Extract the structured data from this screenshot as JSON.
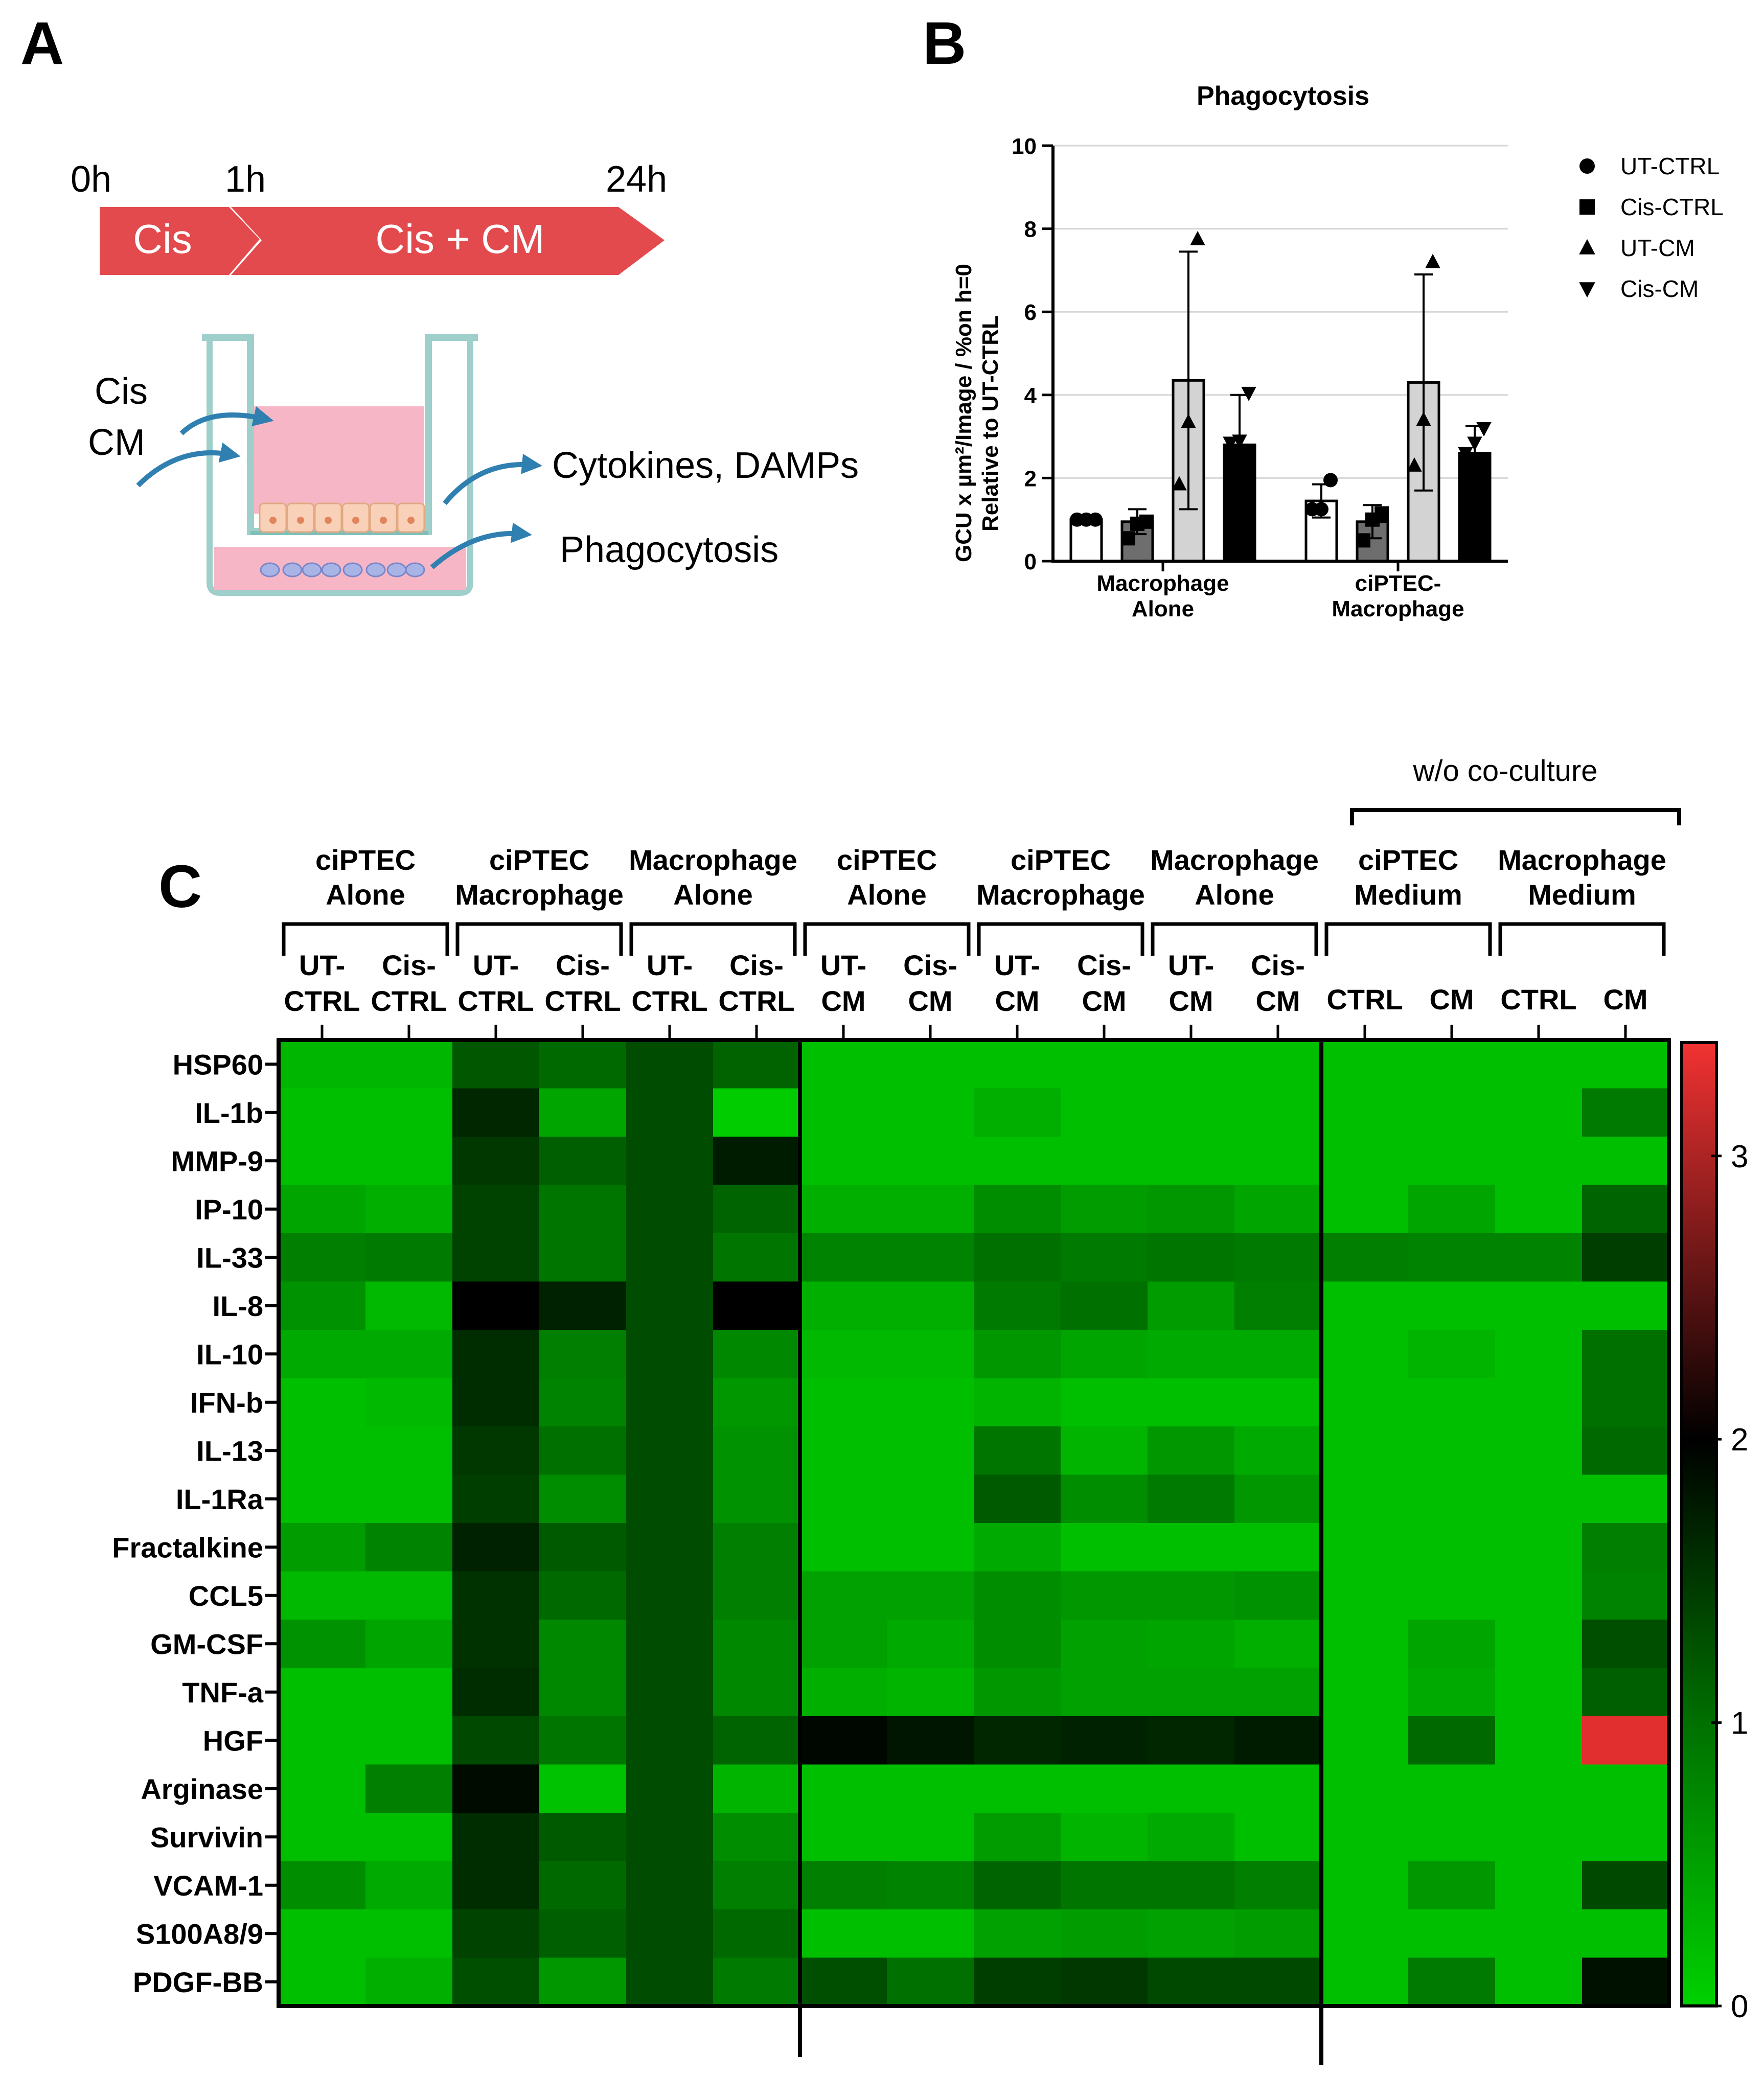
{
  "panels": {
    "a": "A",
    "b": "B",
    "c": "C"
  },
  "schematic": {
    "times": [
      "0h",
      "1h",
      "24h"
    ],
    "step1": "Cis",
    "step2": "Cis + CM",
    "inputs": [
      "Cis",
      "CM"
    ],
    "outputs": [
      "Cytokines, DAMPs",
      "Phagocytosis"
    ],
    "colors": {
      "arrow": "#e34a4d",
      "well_medium": "#f7b6c6",
      "insert": "#bfe0dc",
      "cells_top": "#f8d1b8",
      "cells_bottom": "#a9b4e6",
      "flow_arrow": "#2f7fb0"
    }
  },
  "chart_data": [
    {
      "type": "bar",
      "title": "Phagocytosis",
      "ylabel_line1": "GCU x µm²/Image / %on h=0",
      "ylabel_line2": "Relative to UT-CTRL",
      "categories": [
        [
          "Macrophage",
          "Alone"
        ],
        [
          "ciPTEC-",
          "Macrophage"
        ]
      ],
      "ylim": [
        0,
        10
      ],
      "yticks": [
        0,
        2,
        4,
        6,
        8,
        10
      ],
      "grid": true,
      "legend_position": "right",
      "series": [
        {
          "name": "UT-CTRL",
          "marker": "circle",
          "color": "#ffffff",
          "values": [
            1.0,
            1.45
          ],
          "error": [
            0.0,
            0.4
          ],
          "points": [
            [
              1.0,
              1.0,
              1.0
            ],
            [
              1.25,
              1.25,
              1.95
            ]
          ]
        },
        {
          "name": "Cis-CTRL",
          "marker": "square",
          "color": "#6e6e6e",
          "values": [
            0.95,
            0.95
          ],
          "error": [
            0.3,
            0.4
          ],
          "points": [
            [
              0.55,
              0.9,
              0.95
            ],
            [
              0.5,
              1.0,
              1.15
            ]
          ]
        },
        {
          "name": "UT-CM",
          "marker": "triangle-up",
          "color": "#d3d3d3",
          "values": [
            4.35,
            4.3
          ],
          "error": [
            3.1,
            2.6
          ],
          "points": [
            [
              1.85,
              3.35,
              7.75
            ],
            [
              2.3,
              3.4,
              7.2
            ]
          ]
        },
        {
          "name": "Cis-CM",
          "marker": "triangle-down",
          "color": "#000000",
          "values": [
            2.8,
            2.6
          ],
          "error": [
            1.2,
            0.65
          ],
          "points": [
            [
              2.85,
              2.9,
              4.05
            ],
            [
              2.6,
              2.85,
              3.2
            ]
          ]
        }
      ]
    },
    {
      "type": "heatmap",
      "top_bracket_label": "w/o co-culture",
      "groups": [
        {
          "label": [
            "ciPTEC",
            "Alone"
          ],
          "columns": [
            [
              "UT-",
              "CTRL"
            ],
            [
              "Cis-",
              "CTRL"
            ]
          ]
        },
        {
          "label": [
            "ciPTEC",
            "Macrophage"
          ],
          "columns": [
            [
              "UT-",
              "CTRL"
            ],
            [
              "Cis-",
              "CTRL"
            ]
          ]
        },
        {
          "label": [
            "Macrophage",
            "Alone"
          ],
          "columns": [
            [
              "UT-",
              "CTRL"
            ],
            [
              "Cis-",
              "CTRL"
            ]
          ]
        },
        {
          "label": [
            "ciPTEC",
            "Alone"
          ],
          "columns": [
            [
              "UT-",
              "CM"
            ],
            [
              "Cis-",
              "CM"
            ]
          ]
        },
        {
          "label": [
            "ciPTEC",
            "Macrophage"
          ],
          "columns": [
            [
              "UT-",
              "CM"
            ],
            [
              "Cis-",
              "CM"
            ]
          ]
        },
        {
          "label": [
            "Macrophage",
            "Alone"
          ],
          "columns": [
            [
              "UT-",
              "CM"
            ],
            [
              "Cis-",
              "CM"
            ]
          ]
        },
        {
          "label": [
            "ciPTEC",
            "Medium"
          ],
          "columns": [
            [
              "CTRL"
            ],
            [
              "CM"
            ]
          ]
        },
        {
          "label": [
            "Macrophage",
            "Medium"
          ],
          "columns": [
            [
              "CTRL"
            ],
            [
              "CM"
            ]
          ]
        }
      ],
      "rows": [
        "HSP60",
        "IL-1b",
        "MMP-9",
        "IP-10",
        "IL-33",
        "IL-8",
        "IL-10",
        "IFN-b",
        "IL-13",
        "IL-1Ra",
        "Fractalkine",
        "CCL5",
        "GM-CSF",
        "TNF-a",
        "HGF",
        "Arginase",
        "Survivin",
        "VCAM-1",
        "S100A8/9",
        "PDGF-BB"
      ],
      "values": [
        [
          0.28,
          0.28,
          1.22,
          1.05,
          1.32,
          1.12,
          0.2,
          0.2,
          0.2,
          0.2,
          0.2,
          0.2,
          0.2,
          0.2,
          0.2,
          0.2
        ],
        [
          0.2,
          0.2,
          1.65,
          0.45,
          1.32,
          0.05,
          0.2,
          0.2,
          0.35,
          0.2,
          0.2,
          0.2,
          0.2,
          0.2,
          0.2,
          0.9
        ],
        [
          0.2,
          0.2,
          1.5,
          1.15,
          1.32,
          1.75,
          0.2,
          0.2,
          0.2,
          0.2,
          0.2,
          0.2,
          0.2,
          0.2,
          0.2,
          0.2
        ],
        [
          0.45,
          0.35,
          1.4,
          0.95,
          1.32,
          1.1,
          0.35,
          0.35,
          0.7,
          0.55,
          0.6,
          0.45,
          0.2,
          0.45,
          0.2,
          1.1
        ],
        [
          0.85,
          0.9,
          1.4,
          0.95,
          1.32,
          0.95,
          0.8,
          0.8,
          1.0,
          0.9,
          0.95,
          0.9,
          0.85,
          0.8,
          0.8,
          1.45
        ],
        [
          0.65,
          0.25,
          2.0,
          1.7,
          1.32,
          2.0,
          0.35,
          0.35,
          0.9,
          1.0,
          0.55,
          0.85,
          0.2,
          0.2,
          0.2,
          0.2
        ],
        [
          0.4,
          0.4,
          1.6,
          0.85,
          1.32,
          0.75,
          0.25,
          0.25,
          0.6,
          0.45,
          0.4,
          0.4,
          0.2,
          0.3,
          0.2,
          1.0
        ],
        [
          0.2,
          0.25,
          1.6,
          0.8,
          1.32,
          0.6,
          0.2,
          0.2,
          0.3,
          0.2,
          0.2,
          0.2,
          0.2,
          0.2,
          0.2,
          1.0
        ],
        [
          0.2,
          0.2,
          1.5,
          1.0,
          1.32,
          0.65,
          0.2,
          0.2,
          0.95,
          0.3,
          0.6,
          0.4,
          0.2,
          0.2,
          0.2,
          1.05
        ],
        [
          0.2,
          0.2,
          1.45,
          0.7,
          1.32,
          0.65,
          0.2,
          0.2,
          1.2,
          0.7,
          0.9,
          0.6,
          0.2,
          0.2,
          0.2,
          0.2
        ],
        [
          0.55,
          0.8,
          1.7,
          1.2,
          1.32,
          0.85,
          0.2,
          0.2,
          0.4,
          0.2,
          0.2,
          0.2,
          0.2,
          0.2,
          0.2,
          0.85
        ],
        [
          0.25,
          0.25,
          1.55,
          1.05,
          1.32,
          0.85,
          0.5,
          0.5,
          0.7,
          0.6,
          0.6,
          0.65,
          0.2,
          0.2,
          0.2,
          0.8
        ],
        [
          0.65,
          0.45,
          1.55,
          0.75,
          1.32,
          0.75,
          0.5,
          0.4,
          0.7,
          0.5,
          0.45,
          0.35,
          0.2,
          0.45,
          0.2,
          1.3
        ],
        [
          0.2,
          0.2,
          1.6,
          0.75,
          1.32,
          0.75,
          0.35,
          0.3,
          0.6,
          0.5,
          0.5,
          0.5,
          0.2,
          0.4,
          0.2,
          1.15
        ],
        [
          0.2,
          0.2,
          1.35,
          0.95,
          1.32,
          1.1,
          1.95,
          1.8,
          1.65,
          1.7,
          1.65,
          1.75,
          0.2,
          1.05,
          0.2,
          3.3
        ],
        [
          0.2,
          0.85,
          1.9,
          0.15,
          1.32,
          0.3,
          0.2,
          0.2,
          0.2,
          0.2,
          0.2,
          0.2,
          0.2,
          0.2,
          0.2,
          0.2
        ],
        [
          0.2,
          0.2,
          1.6,
          1.2,
          1.32,
          0.7,
          0.2,
          0.2,
          0.55,
          0.3,
          0.4,
          0.2,
          0.2,
          0.2,
          0.2,
          0.2
        ],
        [
          0.7,
          0.4,
          1.6,
          1.05,
          1.32,
          0.85,
          0.85,
          0.8,
          1.1,
          0.95,
          0.95,
          0.85,
          0.2,
          0.6,
          0.2,
          1.35
        ],
        [
          0.2,
          0.2,
          1.4,
          1.15,
          1.32,
          1.05,
          0.2,
          0.2,
          0.5,
          0.55,
          0.5,
          0.55,
          0.2,
          0.2,
          0.2,
          0.2
        ],
        [
          0.2,
          0.35,
          1.3,
          0.6,
          1.32,
          0.9,
          1.3,
          1.0,
          1.45,
          1.5,
          1.35,
          1.35,
          0.2,
          0.9,
          0.2,
          1.85
        ]
      ],
      "colorbar": {
        "ticks": [
          0,
          1,
          2,
          3
        ],
        "range": [
          0,
          3.4
        ],
        "colors": [
          "#00d100",
          "#000000",
          "#f23232"
        ]
      }
    }
  ]
}
